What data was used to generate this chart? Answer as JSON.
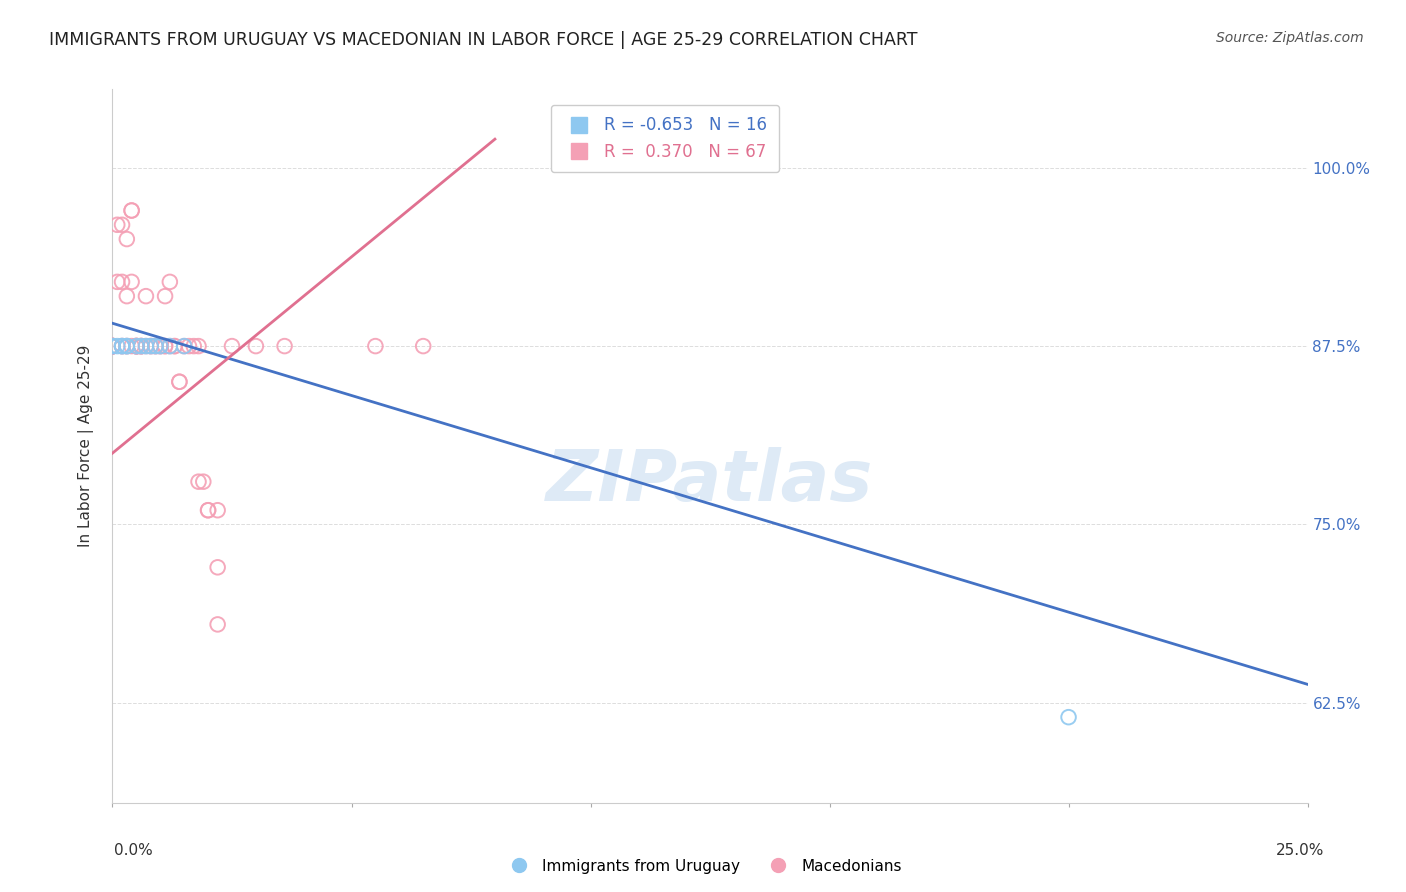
{
  "title": "IMMIGRANTS FROM URUGUAY VS MACEDONIAN IN LABOR FORCE | AGE 25-29 CORRELATION CHART",
  "source": "Source: ZipAtlas.com",
  "ylabel": "In Labor Force | Age 25-29",
  "ytick_labels": [
    "62.5%",
    "75.0%",
    "87.5%",
    "100.0%"
  ],
  "ytick_values": [
    0.625,
    0.75,
    0.875,
    1.0
  ],
  "xlim": [
    0.0,
    0.25
  ],
  "ylim": [
    0.555,
    1.055
  ],
  "legend_line1": "R = -0.653   N = 16",
  "legend_line2": "R =  0.370   N = 67",
  "uruguay_color": "#8EC8F0",
  "macedonian_color": "#F4A0B5",
  "uruguay_line_color": "#4472C4",
  "macedonian_line_color": "#E07090",
  "watermark": "ZIPatlas",
  "uruguay_points": [
    [
      0.0,
      0.875
    ],
    [
      0.0,
      0.875
    ],
    [
      0.001,
      0.875
    ],
    [
      0.002,
      0.875
    ],
    [
      0.002,
      0.875
    ],
    [
      0.003,
      0.875
    ],
    [
      0.003,
      0.875
    ],
    [
      0.005,
      0.875
    ],
    [
      0.006,
      0.875
    ],
    [
      0.007,
      0.875
    ],
    [
      0.008,
      0.875
    ],
    [
      0.009,
      0.875
    ],
    [
      0.01,
      0.875
    ],
    [
      0.012,
      0.875
    ],
    [
      0.015,
      0.875
    ],
    [
      0.2,
      0.615
    ]
  ],
  "macedonian_points": [
    [
      0.0,
      0.875
    ],
    [
      0.0,
      0.875
    ],
    [
      0.0,
      0.875
    ],
    [
      0.0,
      0.875
    ],
    [
      0.0,
      0.875
    ],
    [
      0.0,
      0.875
    ],
    [
      0.0,
      0.875
    ],
    [
      0.0,
      0.875
    ],
    [
      0.0,
      0.875
    ],
    [
      0.0,
      0.875
    ],
    [
      0.001,
      0.92
    ],
    [
      0.001,
      0.96
    ],
    [
      0.002,
      0.875
    ],
    [
      0.002,
      0.92
    ],
    [
      0.002,
      0.96
    ],
    [
      0.002,
      0.875
    ],
    [
      0.003,
      0.875
    ],
    [
      0.003,
      0.875
    ],
    [
      0.003,
      0.91
    ],
    [
      0.003,
      0.95
    ],
    [
      0.004,
      0.92
    ],
    [
      0.004,
      0.97
    ],
    [
      0.004,
      0.97
    ],
    [
      0.004,
      0.875
    ],
    [
      0.005,
      0.875
    ],
    [
      0.005,
      0.875
    ],
    [
      0.005,
      0.875
    ],
    [
      0.005,
      0.875
    ],
    [
      0.005,
      0.875
    ],
    [
      0.005,
      0.875
    ],
    [
      0.006,
      0.875
    ],
    [
      0.006,
      0.875
    ],
    [
      0.006,
      0.875
    ],
    [
      0.006,
      0.875
    ],
    [
      0.007,
      0.91
    ],
    [
      0.007,
      0.875
    ],
    [
      0.008,
      0.875
    ],
    [
      0.008,
      0.875
    ],
    [
      0.009,
      0.875
    ],
    [
      0.009,
      0.875
    ],
    [
      0.01,
      0.875
    ],
    [
      0.01,
      0.875
    ],
    [
      0.011,
      0.875
    ],
    [
      0.011,
      0.875
    ],
    [
      0.011,
      0.91
    ],
    [
      0.012,
      0.875
    ],
    [
      0.012,
      0.92
    ],
    [
      0.013,
      0.875
    ],
    [
      0.013,
      0.875
    ],
    [
      0.014,
      0.85
    ],
    [
      0.014,
      0.85
    ],
    [
      0.015,
      0.875
    ],
    [
      0.016,
      0.875
    ],
    [
      0.017,
      0.875
    ],
    [
      0.018,
      0.875
    ],
    [
      0.018,
      0.78
    ],
    [
      0.019,
      0.78
    ],
    [
      0.02,
      0.76
    ],
    [
      0.02,
      0.76
    ],
    [
      0.022,
      0.76
    ],
    [
      0.022,
      0.72
    ],
    [
      0.022,
      0.68
    ],
    [
      0.025,
      0.875
    ],
    [
      0.03,
      0.875
    ],
    [
      0.036,
      0.875
    ],
    [
      0.055,
      0.875
    ],
    [
      0.065,
      0.875
    ]
  ],
  "uruguay_reg": [
    0.0,
    0.25,
    0.891,
    0.638
  ],
  "macedonian_reg": [
    0.0,
    0.08,
    0.8,
    1.02
  ],
  "grid_color": "#DDDDDD"
}
